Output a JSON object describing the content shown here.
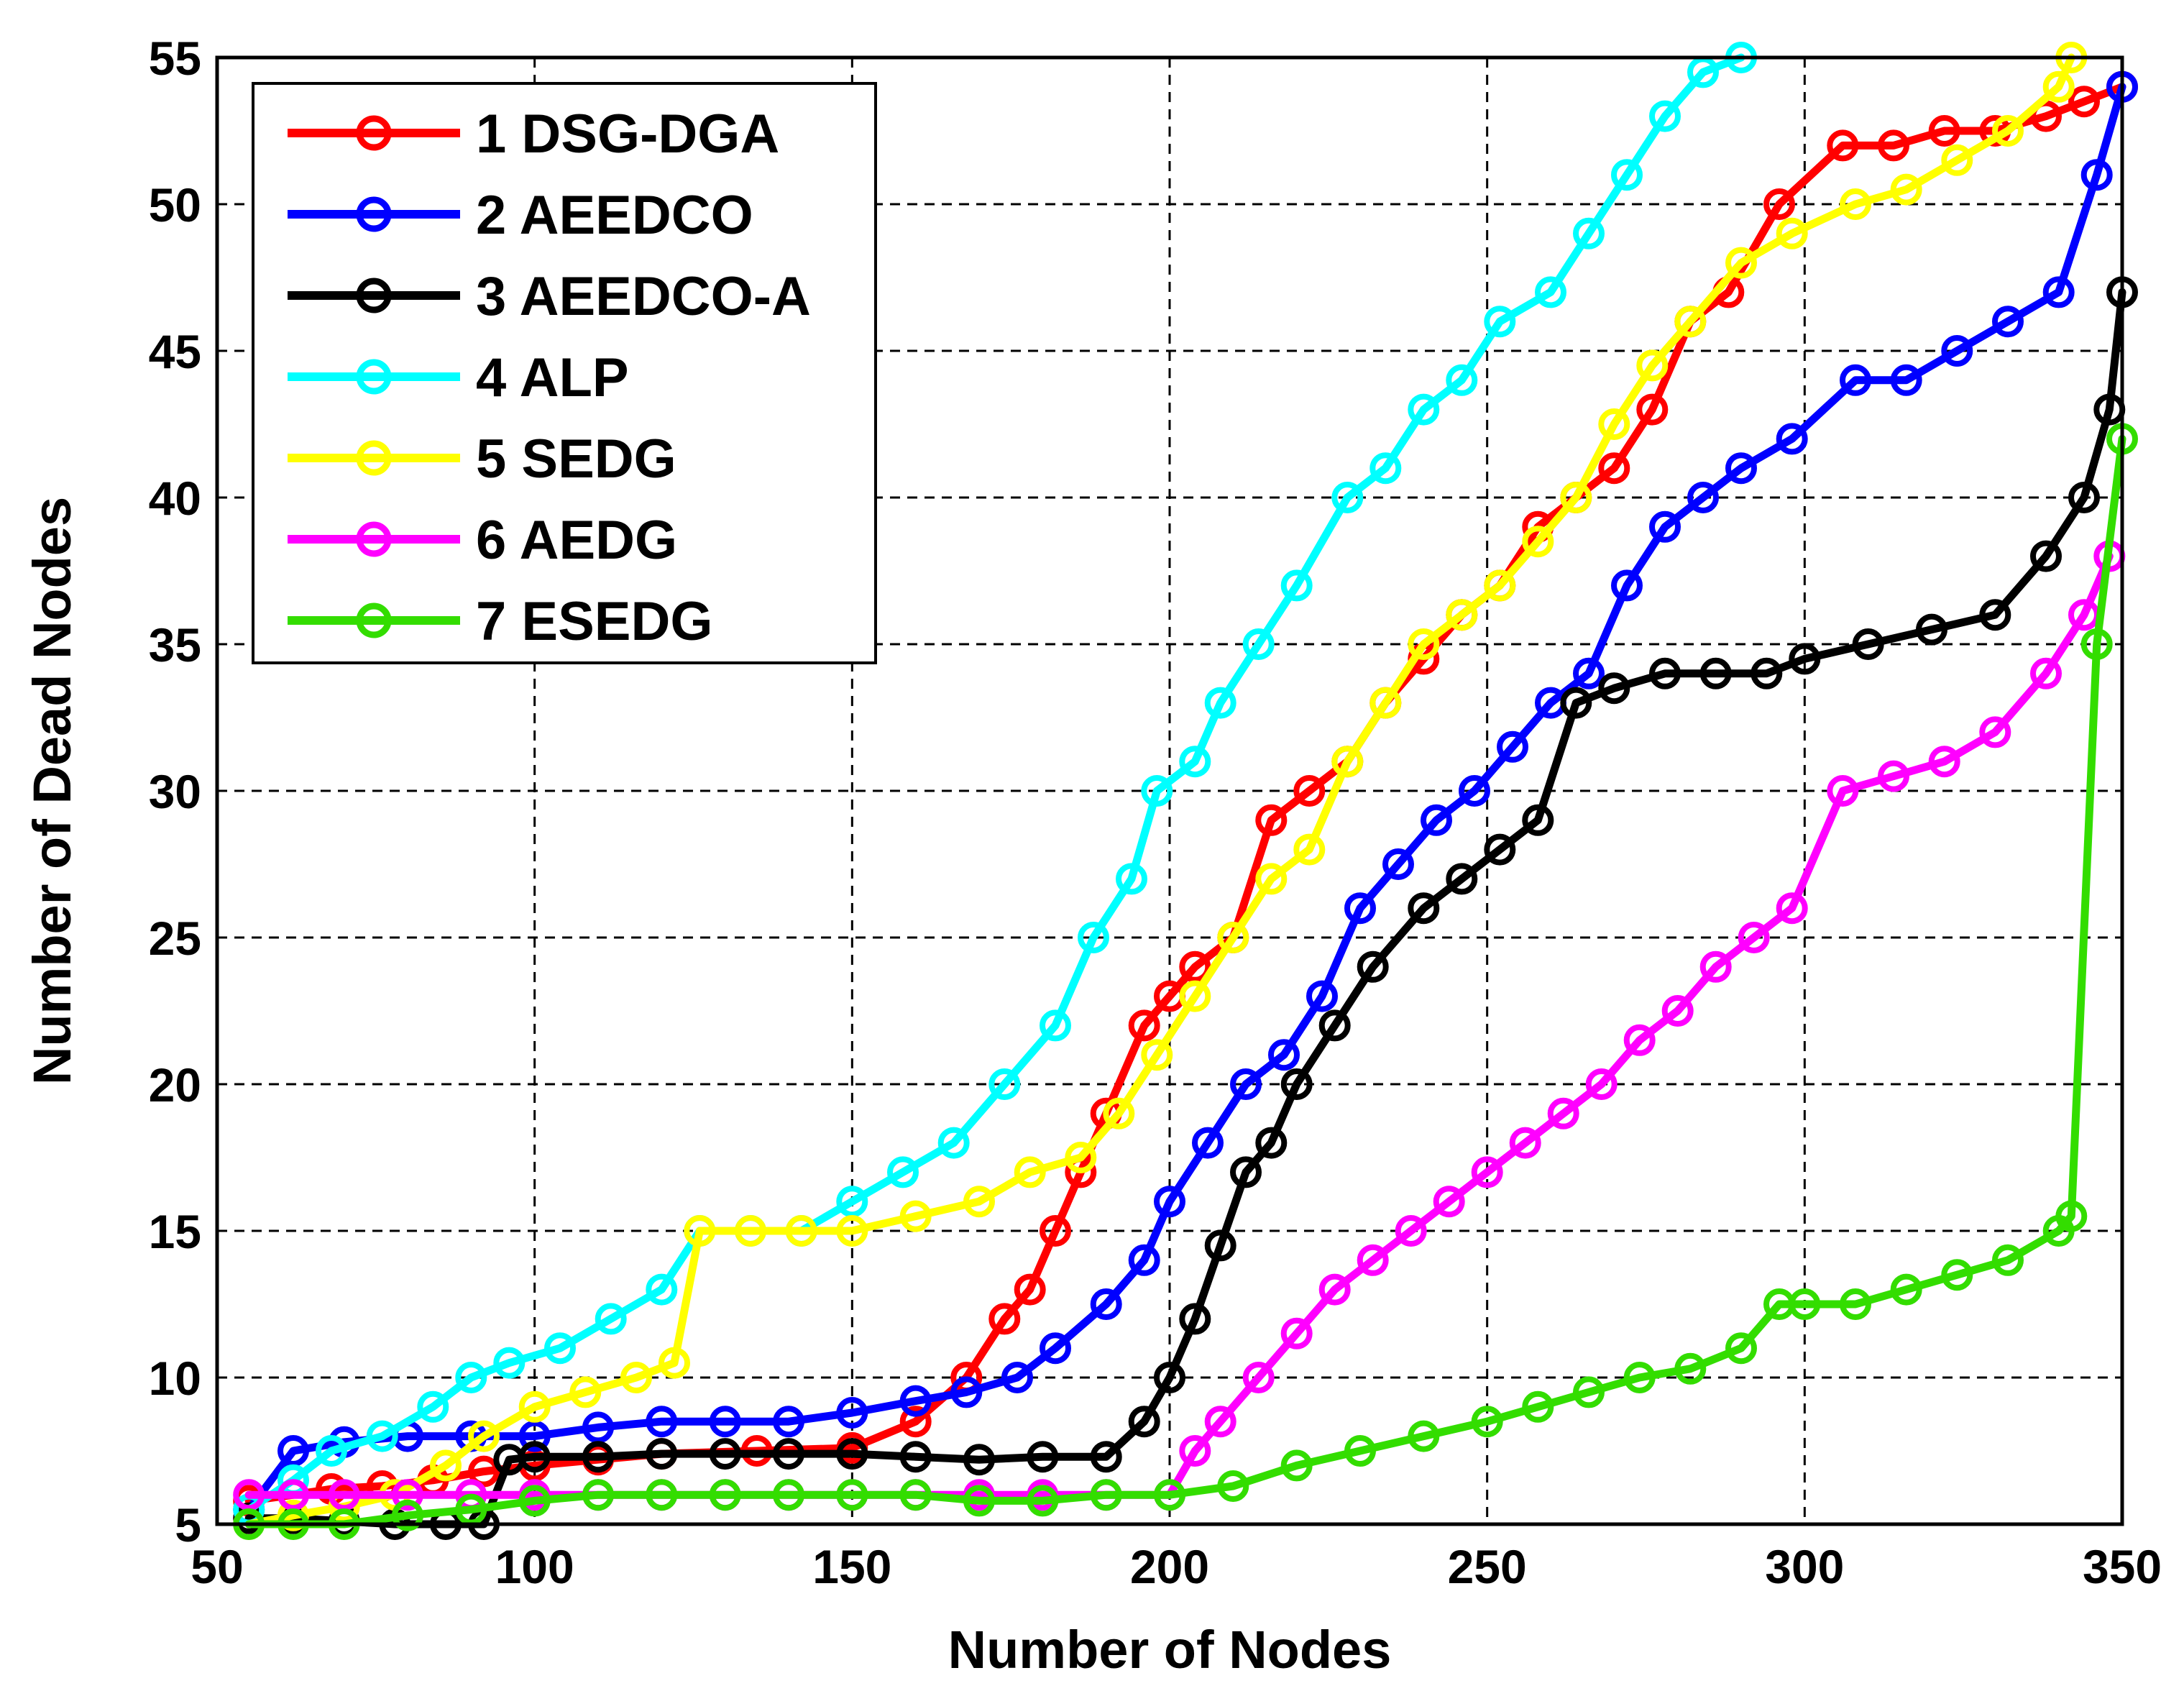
{
  "chart_data": {
    "type": "line",
    "title": "",
    "xlabel": "Number of Nodes",
    "ylabel": "Number of Dead Nodes",
    "xlim": [
      50,
      350
    ],
    "ylim": [
      5,
      55
    ],
    "xticks": [
      "50",
      "100",
      "150",
      "200",
      "250",
      "300",
      "350"
    ],
    "yticks": [
      "5",
      "10",
      "15",
      "20",
      "25",
      "30",
      "35",
      "40",
      "45",
      "50",
      "55"
    ],
    "grid": true,
    "grid_style": "dashed",
    "legend_position": "top-left",
    "series": [
      {
        "name": "1 DSG-DGA",
        "color": "#ff0000",
        "x": [
          55,
          62,
          68,
          76,
          84,
          92,
          100,
          110,
          120,
          135,
          150,
          160,
          168,
          174,
          178,
          182,
          186,
          190,
          196,
          200,
          204,
          210,
          216,
          222,
          228,
          234,
          240,
          246,
          252,
          258,
          264,
          270,
          276,
          282,
          288,
          296,
          306,
          314,
          322,
          330,
          338,
          344,
          350
        ],
        "y": [
          5.8,
          6,
          6.2,
          6.3,
          6.5,
          6.8,
          7,
          7.2,
          7.4,
          7.5,
          7.6,
          8.5,
          10,
          12,
          13,
          15,
          17,
          19,
          22,
          23,
          24,
          25,
          29,
          30,
          31,
          33,
          34.5,
          36,
          37,
          39,
          40,
          41,
          43,
          46,
          47,
          50,
          52,
          52,
          52.5,
          52.5,
          53,
          53.5,
          54
        ]
      },
      {
        "name": "2 AEEDCO",
        "color": "#0000ff",
        "x": [
          55,
          62,
          70,
          80,
          90,
          100,
          110,
          120,
          130,
          140,
          150,
          160,
          168,
          176,
          182,
          190,
          196,
          200,
          206,
          212,
          218,
          224,
          230,
          236,
          242,
          248,
          254,
          260,
          266,
          272,
          278,
          284,
          290,
          298,
          308,
          316,
          324,
          332,
          340,
          346,
          350
        ],
        "y": [
          5.5,
          7.5,
          7.8,
          8,
          8,
          8,
          8.3,
          8.5,
          8.5,
          8.5,
          8.8,
          9.2,
          9.5,
          10,
          11,
          12.5,
          14,
          16,
          18,
          20,
          21,
          23,
          26,
          27.5,
          29,
          30,
          31.5,
          33,
          34,
          37,
          39,
          40,
          41,
          42,
          44,
          44,
          45,
          46,
          47,
          51,
          54
        ]
      },
      {
        "name": "3 AEEDCO-A",
        "color": "#000000",
        "x": [
          55,
          62,
          70,
          78,
          86,
          92,
          96,
          100,
          110,
          120,
          130,
          140,
          150,
          160,
          170,
          180,
          190,
          196,
          200,
          204,
          208,
          212,
          216,
          220,
          226,
          232,
          240,
          246,
          252,
          258,
          264,
          270,
          278,
          286,
          294,
          300,
          310,
          320,
          330,
          338,
          344,
          348,
          350
        ],
        "y": [
          5.2,
          5.2,
          5.1,
          5,
          5,
          5,
          7.2,
          7.3,
          7.3,
          7.4,
          7.4,
          7.4,
          7.4,
          7.3,
          7.2,
          7.3,
          7.3,
          8.5,
          10,
          12,
          14.5,
          17,
          18,
          20,
          22,
          24,
          26,
          27,
          28,
          29,
          33,
          33.5,
          34,
          34,
          34,
          34.5,
          35,
          35.5,
          36,
          38,
          40,
          43,
          47
        ]
      },
      {
        "name": "4 ALP",
        "color": "#00ffff",
        "x": [
          55,
          62,
          68,
          76,
          84,
          90,
          96,
          104,
          112,
          120,
          126,
          134,
          142,
          150,
          158,
          166,
          174,
          182,
          188,
          194,
          198,
          204,
          208,
          214,
          220,
          228,
          234,
          240,
          246,
          252,
          260,
          266,
          272,
          278,
          284,
          290
        ],
        "y": [
          5.5,
          6.5,
          7.5,
          8,
          9,
          10,
          10.5,
          11,
          12,
          13,
          15,
          15,
          15,
          16,
          17,
          18,
          20,
          22,
          25,
          27,
          30,
          31,
          33,
          35,
          37,
          40,
          41,
          43,
          44,
          46,
          47,
          49,
          51,
          53,
          54.5,
          55
        ]
      },
      {
        "name": "5 SEDG",
        "color": "#ffff00",
        "x": [
          55,
          62,
          70,
          78,
          86,
          92,
          100,
          108,
          116,
          122,
          126,
          134,
          142,
          150,
          160,
          170,
          178,
          186,
          192,
          198,
          204,
          210,
          216,
          222,
          228,
          234,
          240,
          246,
          252,
          258,
          264,
          270,
          276,
          282,
          290,
          298,
          308,
          316,
          324,
          332,
          340,
          342
        ],
        "y": [
          5,
          5.3,
          5.6,
          6,
          7,
          8,
          9,
          9.5,
          10,
          10.5,
          15,
          15,
          15,
          15,
          15.5,
          16,
          17,
          17.5,
          19,
          21,
          23,
          25,
          27,
          28,
          31,
          33,
          35,
          36,
          37,
          38.5,
          40,
          42.5,
          44.5,
          46,
          48,
          49,
          50,
          50.5,
          51.5,
          52.5,
          54,
          55
        ]
      },
      {
        "name": "6 AEDG",
        "color": "#ff00ff",
        "x": [
          55,
          62,
          70,
          80,
          90,
          100,
          110,
          120,
          130,
          140,
          150,
          160,
          170,
          180,
          190,
          200,
          204,
          208,
          214,
          220,
          226,
          232,
          238,
          244,
          250,
          256,
          262,
          268,
          274,
          280,
          286,
          292,
          298,
          306,
          314,
          322,
          330,
          338,
          344,
          348
        ],
        "y": [
          6,
          6,
          6,
          6,
          6,
          6,
          6,
          6,
          6,
          6,
          6,
          6,
          6,
          6,
          6,
          6,
          7.5,
          8.5,
          10,
          11.5,
          13,
          14,
          15,
          16,
          17,
          18,
          19,
          20,
          21.5,
          22.5,
          24,
          25,
          26,
          30,
          30.5,
          31,
          32,
          34,
          36,
          38
        ]
      },
      {
        "name": "7 ESEDG",
        "color": "#33dd00",
        "x": [
          55,
          62,
          70,
          80,
          90,
          100,
          110,
          120,
          130,
          140,
          150,
          160,
          170,
          180,
          190,
          200,
          210,
          220,
          230,
          240,
          250,
          258,
          266,
          274,
          282,
          290,
          296,
          300,
          308,
          316,
          324,
          332,
          340,
          342,
          346,
          350
        ],
        "y": [
          5,
          5,
          5,
          5.3,
          5.5,
          5.8,
          6,
          6,
          6,
          6,
          6,
          6,
          5.8,
          5.8,
          6,
          6,
          6.3,
          7,
          7.5,
          8,
          8.5,
          9,
          9.5,
          10,
          10.3,
          11,
          12.5,
          12.5,
          12.5,
          13,
          13.5,
          14,
          15,
          15.5,
          35,
          42
        ]
      }
    ]
  }
}
